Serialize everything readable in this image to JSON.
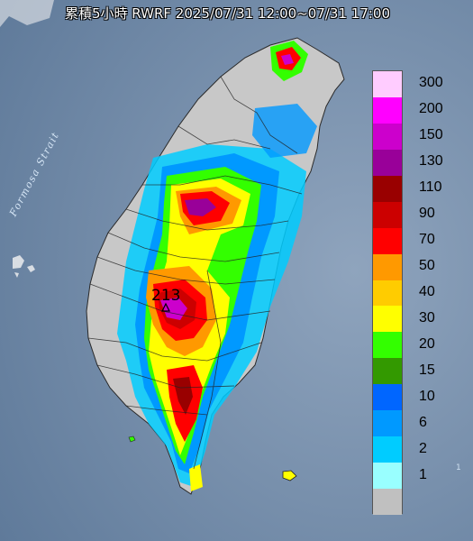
{
  "title": "累積5小時 RWRF 2025/07/31 12:00~07/31 17:00",
  "strait_label": "Formosa Strait",
  "peak_label": "213",
  "edge_label": "1",
  "legend": [
    {
      "label": "300",
      "color": "#ffccff"
    },
    {
      "label": "200",
      "color": "#ff00ff"
    },
    {
      "label": "150",
      "color": "#cc00cc"
    },
    {
      "label": "130",
      "color": "#990099"
    },
    {
      "label": "110",
      "color": "#990000"
    },
    {
      "label": "90",
      "color": "#cc0000"
    },
    {
      "label": "70",
      "color": "#ff0000"
    },
    {
      "label": "50",
      "color": "#ff9900"
    },
    {
      "label": "40",
      "color": "#ffcc00"
    },
    {
      "label": "30",
      "color": "#ffff00"
    },
    {
      "label": "20",
      "color": "#33ff00"
    },
    {
      "label": "15",
      "color": "#339900"
    },
    {
      "label": "10",
      "color": "#0066ff"
    },
    {
      "label": "6",
      "color": "#0099ff"
    },
    {
      "label": "2",
      "color": "#00ccff"
    },
    {
      "label": "1",
      "color": "#99ffff"
    },
    {
      "label": "",
      "color": "#c0c0c0"
    }
  ]
}
